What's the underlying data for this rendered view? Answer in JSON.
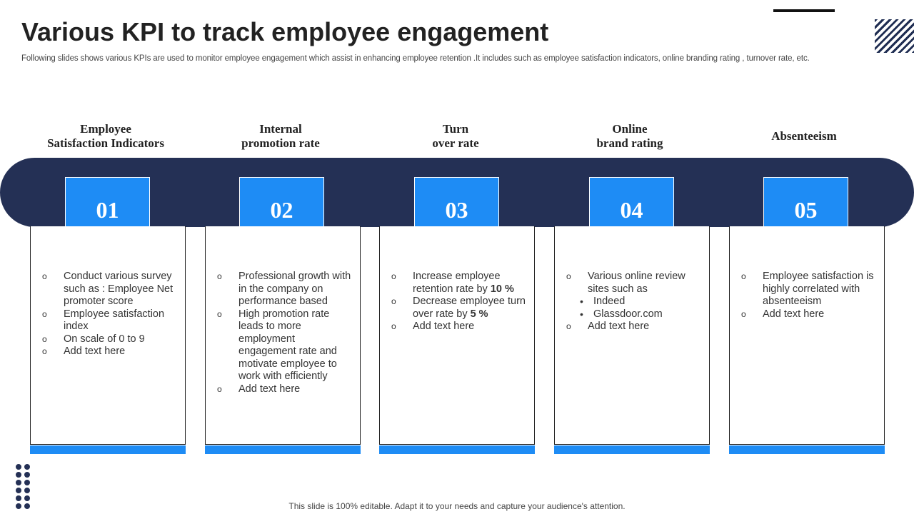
{
  "title": "Various KPI to track employee engagement",
  "subtitle": "Following slides shows various KPIs are used to monitor employee engagement which assist in enhancing employee retention .It includes such as employee satisfaction indicators, online branding rating , turnover rate,  etc.",
  "colors": {
    "band": "#243055",
    "accent": "#1e8cf5"
  },
  "kpis": [
    {
      "heading": "Employee\nSatisfaction Indicators",
      "number": "01",
      "items": [
        {
          "text": "Conduct various survey such as : Employee Net promoter score"
        },
        {
          "text": "Employee satisfaction index"
        },
        {
          "text": "On scale of 0 to 9"
        },
        {
          "text": "Add text here"
        }
      ]
    },
    {
      "heading": "Internal\npromotion rate",
      "number": "02",
      "items": [
        {
          "text": "Professional growth with in the company on performance based"
        },
        {
          "text": "High promotion rate leads to more employment engagement rate and motivate employee to work with efficiently"
        },
        {
          "text": "Add text here"
        }
      ]
    },
    {
      "heading": "Turn\nover rate",
      "number": "03",
      "items": [
        {
          "text": "Increase employee retention  rate by ",
          "bold": "10 %"
        },
        {
          "text": "Decrease employee turn over rate by ",
          "bold": "5 %"
        },
        {
          "text": "Add text here"
        }
      ]
    },
    {
      "heading": "Online\nbrand rating",
      "number": "04",
      "items": [
        {
          "text": "Various online review sites such as"
        },
        {
          "text": "Indeed",
          "sub": true
        },
        {
          "text": "Glassdoor.com",
          "sub": true
        },
        {
          "text": "Add text here"
        }
      ]
    },
    {
      "heading": "Absenteeism",
      "number": "05",
      "items": [
        {
          "text": "Employee satisfaction is highly correlated with absenteeism"
        },
        {
          "text": "Add text here"
        }
      ]
    }
  ],
  "bullets": {
    "main": "o",
    "sub": "•"
  },
  "footer": "This slide is 100% editable. Adapt it to your needs and capture your audience's attention."
}
